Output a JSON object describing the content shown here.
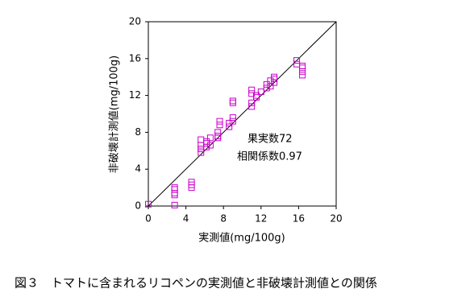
{
  "chart_data": {
    "type": "scatter",
    "x_label": "実測値(mg/100g)",
    "y_label": "非破壊計測値(mg/100g)",
    "annotations": [
      "果実数72",
      "相関係数0.97"
    ],
    "caption": "図３　トマトに含まれるリコペンの実測値と非破壊計測値との関係",
    "xlim": [
      0,
      20
    ],
    "ylim": [
      0,
      20
    ],
    "xticks": [
      0,
      4,
      8,
      12,
      16,
      20
    ],
    "yticks": [
      0,
      4,
      8,
      12,
      16,
      20
    ],
    "series": [
      {
        "color": "#cc00cc",
        "x": [
          0,
          2.8,
          2.8,
          2.8,
          2.8,
          2.8,
          4.6,
          4.6,
          4.6,
          5.6,
          5.6,
          5.6,
          5.6,
          6.2,
          6.2,
          6.2,
          6.6,
          6.6,
          7.4,
          7.4,
          7.4,
          7.6,
          7.6,
          8.6,
          8.6,
          9.0,
          9.0,
          9.0,
          9.0,
          11.0,
          11.0,
          11.0,
          11.0,
          11.5,
          11.5,
          12.0,
          12.6,
          12.6,
          13.0,
          13.0,
          13.4,
          13.4,
          13.4,
          15.8,
          15.8,
          16.4,
          16.4,
          16.4,
          16.4
        ],
        "y": [
          0.2,
          0.1,
          1.2,
          1.4,
          1.8,
          2.0,
          2.0,
          2.3,
          2.6,
          5.8,
          6.2,
          6.6,
          7.2,
          6.4,
          6.8,
          7.0,
          6.6,
          7.4,
          7.4,
          7.6,
          8.0,
          8.8,
          9.2,
          8.6,
          9.0,
          9.2,
          9.6,
          11.2,
          11.4,
          10.8,
          11.2,
          12.2,
          12.6,
          11.8,
          12.0,
          12.4,
          12.8,
          13.2,
          13.0,
          13.6,
          13.4,
          13.8,
          14.0,
          15.4,
          15.8,
          14.2,
          14.6,
          15.0,
          15.2
        ]
      }
    ]
  }
}
